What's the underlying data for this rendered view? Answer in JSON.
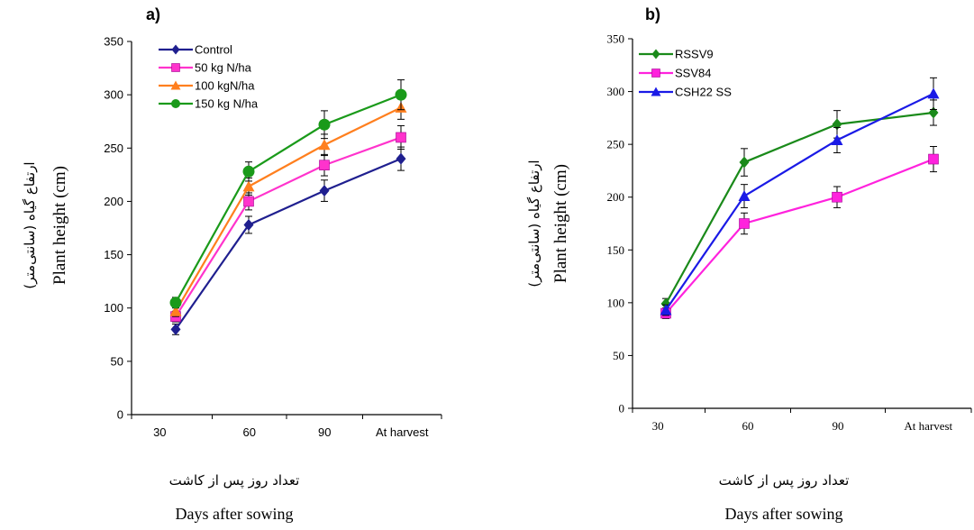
{
  "chart_data": [
    {
      "type": "line",
      "panel_label": "a)",
      "categories": [
        "30",
        "60",
        "90",
        "At harvest"
      ],
      "x": [
        1,
        2,
        3,
        4
      ],
      "ylim": [
        0,
        350
      ],
      "yticks": [
        0,
        50,
        100,
        150,
        200,
        250,
        300,
        350
      ],
      "ylabel": "Plant height (cm)",
      "ylabel_fa": "ارتفاع گیاه (سانتی‌متر)",
      "xlabel": "Days after sowing",
      "xlabel_fa": "تعداد روز پس از کاشت",
      "legend_position": "top-left",
      "grid": false,
      "series": [
        {
          "name": "Control",
          "color": "#1f1f8f",
          "marker": "diamond",
          "values": [
            80,
            178,
            210,
            240
          ],
          "errors": [
            5,
            8,
            10,
            11
          ]
        },
        {
          "name": "50 kg N/ha",
          "color": "#ff33cc",
          "marker": "square",
          "values": [
            92,
            200,
            234,
            260
          ],
          "errors": [
            5,
            8,
            10,
            11
          ]
        },
        {
          "name": "100 kgN/ha",
          "color": "#ff7f1e",
          "marker": "triangle",
          "values": [
            97,
            214,
            253,
            288
          ],
          "errors": [
            5,
            8,
            10,
            11
          ]
        },
        {
          "name": "150 kg N/ha",
          "color": "#1a9a1a",
          "marker": "circle",
          "values": [
            105,
            228,
            272,
            300
          ],
          "errors": [
            5,
            9,
            13,
            14
          ]
        }
      ]
    },
    {
      "type": "line",
      "panel_label": "b)",
      "categories": [
        "30",
        "60",
        "90",
        "At harvest"
      ],
      "x": [
        1,
        2,
        3,
        4
      ],
      "ylim": [
        0,
        350
      ],
      "yticks": [
        0,
        50,
        100,
        150,
        200,
        250,
        300,
        350
      ],
      "ylabel": "Plant height (cm)",
      "ylabel_fa": "ارتفاع گیاه (سانتی‌متر)",
      "xlabel": "Days after sowing",
      "xlabel_fa": "تعداد روز پس از کاشت",
      "legend_position": "top-left",
      "grid": false,
      "series": [
        {
          "name": "RSSV9",
          "color": "#1a8a1a",
          "marker": "diamond",
          "values": [
            99,
            233,
            269,
            280
          ],
          "errors": [
            5,
            13,
            13,
            12
          ]
        },
        {
          "name": "SSV84",
          "color": "#ff22dd",
          "marker": "square",
          "values": [
            90,
            175,
            200,
            236
          ],
          "errors": [
            5,
            10,
            10,
            12
          ]
        },
        {
          "name": "CSH22 SS",
          "color": "#1a1ae6",
          "marker": "triangle",
          "values": [
            93,
            201,
            254,
            298
          ],
          "errors": [
            5,
            11,
            12,
            15
          ]
        }
      ]
    }
  ]
}
